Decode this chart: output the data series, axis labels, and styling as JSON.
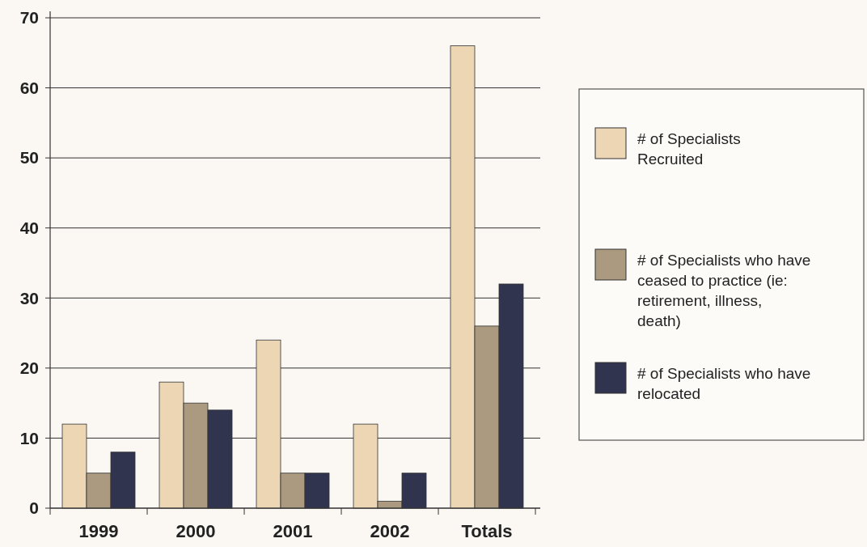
{
  "chart_data": {
    "type": "bar",
    "categories": [
      "1999",
      "2000",
      "2001",
      "2002",
      "Totals"
    ],
    "series": [
      {
        "name": "# of Specialists Recruited",
        "color": "#ecd6b4",
        "values": [
          12,
          18,
          24,
          12,
          66
        ]
      },
      {
        "name": "# of Specialists who have ceased to practice (ie: retirement, illness, death)",
        "color": "#ab9a80",
        "values": [
          5,
          15,
          5,
          1,
          26
        ]
      },
      {
        "name": "# of Specialists who have relocated",
        "color": "#30344f",
        "values": [
          8,
          14,
          5,
          5,
          32
        ]
      }
    ],
    "ylim": [
      0,
      70
    ],
    "yticks": [
      0,
      10,
      20,
      30,
      40,
      50,
      60,
      70
    ],
    "grid": "y",
    "legend": "right"
  }
}
